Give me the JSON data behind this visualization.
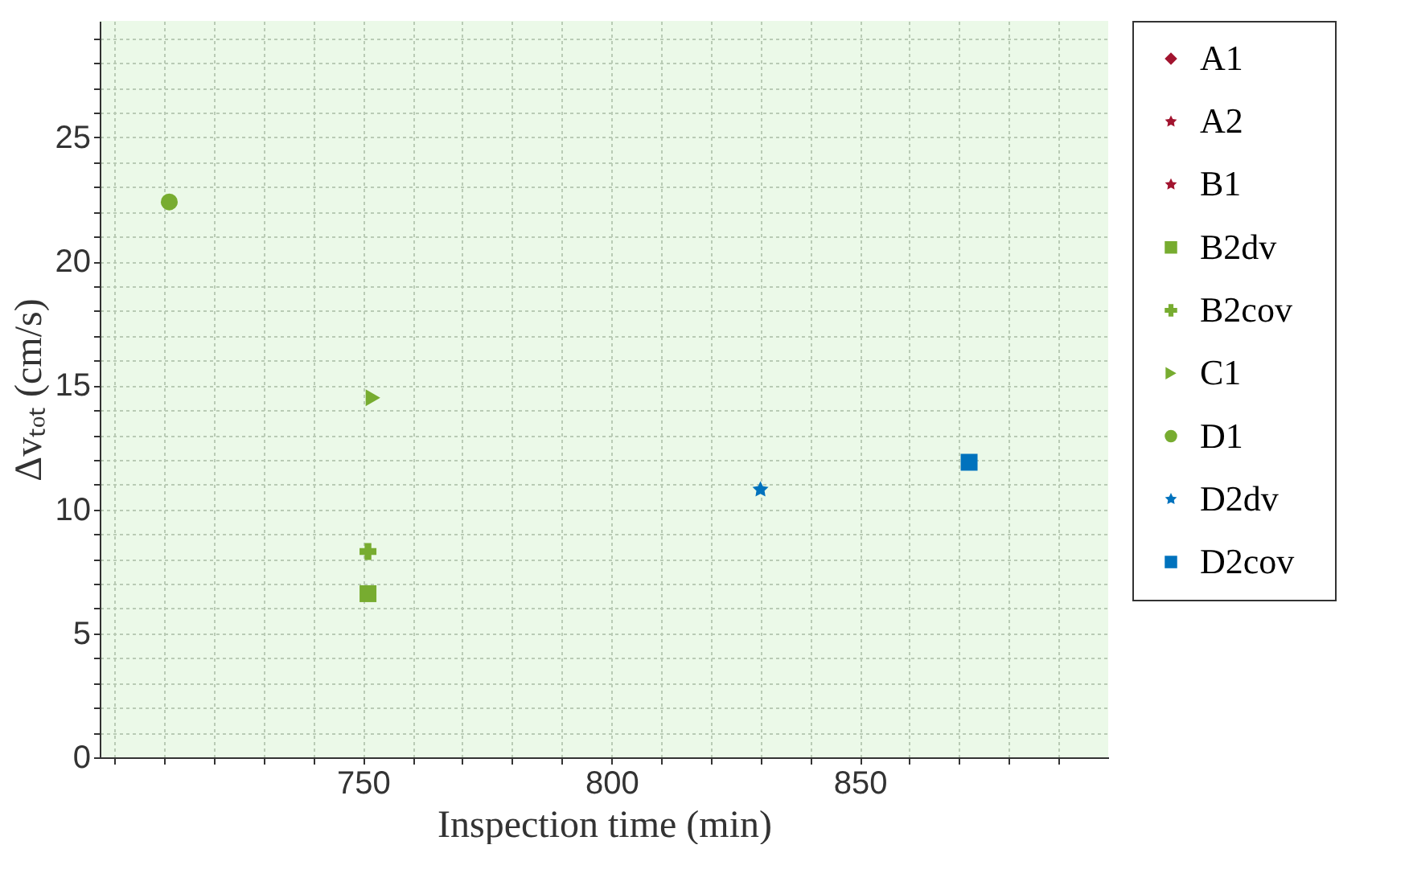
{
  "chart_data": {
    "type": "scatter",
    "xlabel": "Inspection time (min)",
    "ylabel": "Δvₜₒₜ (cm/s)",
    "xlim": [
      697,
      900
    ],
    "ylim": [
      0,
      29.7
    ],
    "xticks": [
      {
        "value": 700,
        "label": null
      },
      {
        "value": 710,
        "label": null
      },
      {
        "value": 720,
        "label": null
      },
      {
        "value": 730,
        "label": null
      },
      {
        "value": 740,
        "label": null
      },
      750,
      {
        "value": 760,
        "label": null
      },
      {
        "value": 770,
        "label": null
      },
      {
        "value": 780,
        "label": null
      },
      {
        "value": 790,
        "label": null
      },
      800,
      {
        "value": 810,
        "label": null
      },
      {
        "value": 820,
        "label": null
      },
      {
        "value": 830,
        "label": null
      },
      {
        "value": 840,
        "label": null
      },
      850,
      {
        "value": 860,
        "label": null
      },
      {
        "value": 870,
        "label": null
      },
      {
        "value": 880,
        "label": null
      },
      {
        "value": 890,
        "label": null
      }
    ],
    "yticks": [
      0,
      {
        "value": 1,
        "label": null
      },
      {
        "value": 2,
        "label": null
      },
      {
        "value": 3,
        "label": null
      },
      {
        "value": 4,
        "label": null
      },
      5,
      {
        "value": 6,
        "label": null
      },
      {
        "value": 7,
        "label": null
      },
      {
        "value": 8,
        "label": null
      },
      {
        "value": 9,
        "label": null
      },
      10,
      {
        "value": 11,
        "label": null
      },
      {
        "value": 12,
        "label": null
      },
      {
        "value": 13,
        "label": null
      },
      {
        "value": 14,
        "label": null
      },
      15,
      {
        "value": 16,
        "label": null
      },
      {
        "value": 17,
        "label": null
      },
      {
        "value": 18,
        "label": null
      },
      {
        "value": 19,
        "label": null
      },
      20,
      {
        "value": 21,
        "label": null
      },
      {
        "value": 22,
        "label": null
      },
      {
        "value": 23,
        "label": null
      },
      {
        "value": 24,
        "label": null
      },
      25,
      {
        "value": 26,
        "label": null
      },
      {
        "value": 27,
        "label": null
      },
      {
        "value": 28,
        "label": null
      },
      {
        "value": 29,
        "label": null
      }
    ],
    "grid": true,
    "legend": "right",
    "series": [
      {
        "name": "A1",
        "color": "#a2142f",
        "marker": "diamond"
      },
      {
        "name": "A2",
        "color": "#a2142f",
        "marker": "star"
      },
      {
        "name": "B1",
        "color": "#a2142f",
        "marker": "star"
      },
      {
        "name": "B2dv",
        "color": "#77ac30",
        "marker": "square",
        "x": [
          751
        ],
        "values": [
          6.6
        ]
      },
      {
        "name": "B2cov",
        "color": "#77ac30",
        "marker": "cross",
        "x": [
          751
        ],
        "values": [
          8.3
        ]
      },
      {
        "name": "C1",
        "color": "#77ac30",
        "marker": "triangle",
        "x": [
          752
        ],
        "values": [
          14.5
        ]
      },
      {
        "name": "D1",
        "color": "#77ac30",
        "marker": "circle",
        "x": [
          711
        ],
        "values": [
          22.4
        ]
      },
      {
        "name": "D2dv",
        "color": "#0072bd",
        "marker": "star",
        "x": [
          830
        ],
        "values": [
          10.8
        ]
      },
      {
        "name": "D2cov",
        "color": "#0072bd",
        "marker": "square",
        "x": [
          872
        ],
        "values": [
          11.9
        ]
      }
    ]
  }
}
